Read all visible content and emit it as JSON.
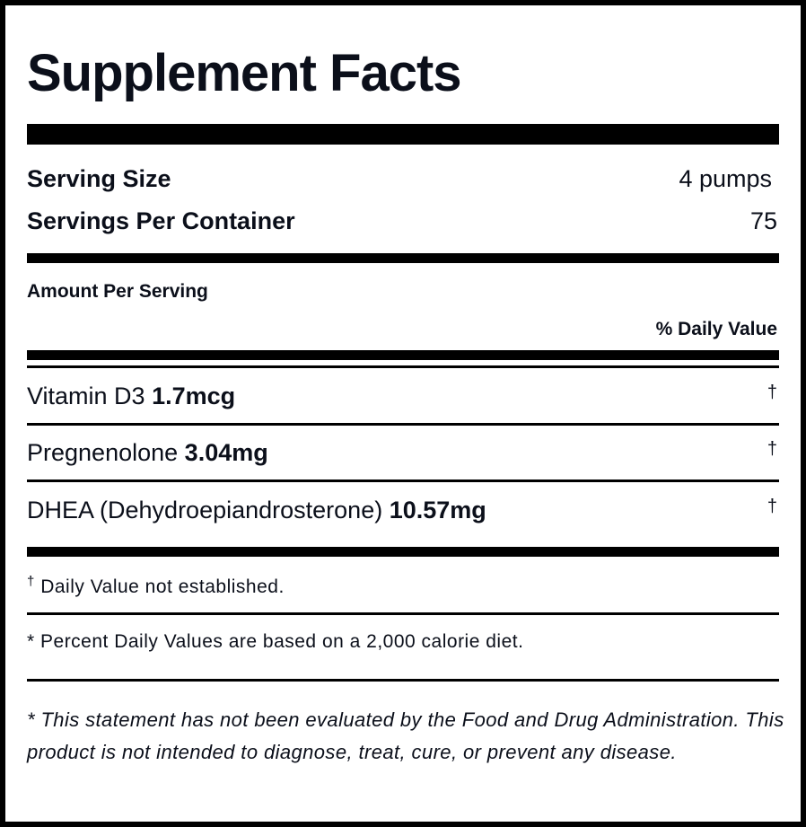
{
  "title": "Supplement Facts",
  "serving": {
    "size_label": "Serving Size",
    "size_value": "4 pumps",
    "per_container_label": "Servings Per Container",
    "per_container_value": "75"
  },
  "amount_per_serving": "Amount Per Serving",
  "daily_value_header": "% Daily Value",
  "ingredients": [
    {
      "name": "Vitamin D3",
      "amount": "1.7mcg",
      "dv": "†"
    },
    {
      "name": "Pregnenolone",
      "amount": "3.04mg",
      "dv": "†"
    },
    {
      "name": "DHEA (Dehydroepiandrosterone)",
      "amount": "10.57mg",
      "dv": "†"
    }
  ],
  "footnotes": {
    "dagger_symbol": "†",
    "dagger_text": "Daily Value not established.",
    "percent_note": "* Percent Daily Values are based on a 2,000 calorie diet.",
    "fda_disclaimer": "* This statement has not been evaluated by the Food and Drug Administration. This product is not intended to diagnose, treat, cure, or prevent any disease."
  }
}
